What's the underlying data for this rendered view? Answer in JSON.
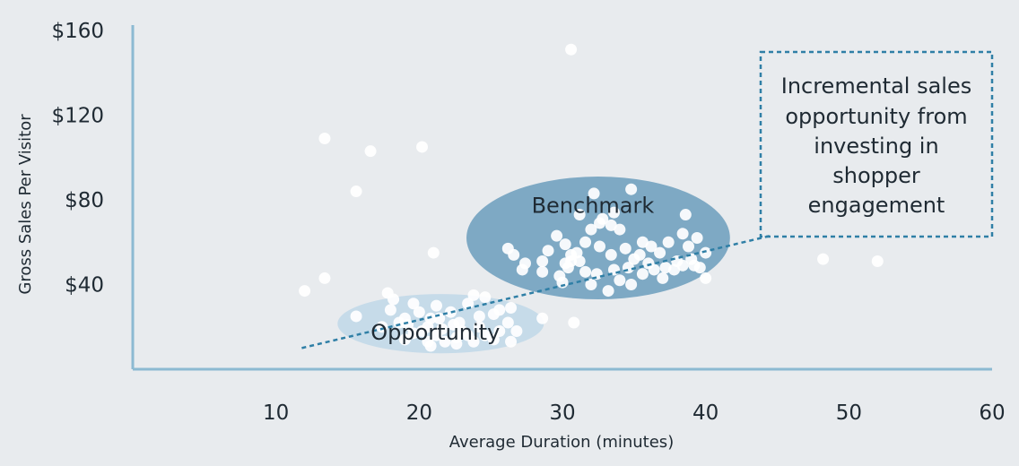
{
  "chart_data": {
    "type": "scatter",
    "xlabel": "Average Duration (minutes)",
    "ylabel": "Gross Sales Per Visitor",
    "x_ticks": [
      "10",
      "20",
      "30",
      "40",
      "50",
      "60"
    ],
    "y_ticks": [
      "$40",
      "$80",
      "$120",
      "$160"
    ],
    "xlim": [
      0,
      60
    ],
    "ylim": [
      0,
      160
    ],
    "grid": false,
    "colors": {
      "background": "#e8ebee",
      "axis": "#8cbad2",
      "point": "#ffffff",
      "benchmark_fill": "#7ea9c4",
      "opportunity_fill": "#c6dbe9",
      "trend": "#2f7fa6"
    },
    "regions": [
      {
        "label": "Benchmark",
        "center": [
          32.5,
          62
        ],
        "radius_x": 9.2,
        "radius_y": 29
      },
      {
        "label": "Opportunity",
        "center": [
          21.5,
          21.5
        ],
        "radius_x": 7.2,
        "radius_y": 14
      }
    ],
    "trendline": {
      "from": [
        11.8,
        10
      ],
      "to": [
        44.5,
        63
      ]
    },
    "callout": {
      "lines": [
        "Incremental sales",
        "opportunity from",
        "investing in",
        "shopper",
        "engagement"
      ]
    },
    "points": [
      [
        30.6,
        151
      ],
      [
        13.4,
        109
      ],
      [
        16.6,
        103
      ],
      [
        20.2,
        105
      ],
      [
        15.6,
        84
      ],
      [
        21.0,
        55
      ],
      [
        12.0,
        37
      ],
      [
        13.4,
        43
      ],
      [
        48.2,
        52
      ],
      [
        52.0,
        51
      ],
      [
        30.8,
        22
      ],
      [
        40.0,
        43
      ],
      [
        32.2,
        83
      ],
      [
        34.8,
        85
      ],
      [
        31.2,
        73
      ],
      [
        32.8,
        71
      ],
      [
        33.6,
        74
      ],
      [
        38.6,
        73
      ],
      [
        32.0,
        66
      ],
      [
        32.6,
        69
      ],
      [
        33.4,
        68
      ],
      [
        34.0,
        66
      ],
      [
        35.6,
        60
      ],
      [
        36.2,
        58
      ],
      [
        37.4,
        60
      ],
      [
        38.4,
        64
      ],
      [
        39.4,
        62
      ],
      [
        38.8,
        58
      ],
      [
        40.0,
        55
      ],
      [
        39.0,
        52
      ],
      [
        36.8,
        55
      ],
      [
        35.0,
        52
      ],
      [
        34.4,
        57
      ],
      [
        33.4,
        54
      ],
      [
        32.6,
        58
      ],
      [
        31.6,
        60
      ],
      [
        30.2,
        59
      ],
      [
        29.6,
        63
      ],
      [
        29.0,
        56
      ],
      [
        30.6,
        54
      ],
      [
        31.2,
        51
      ],
      [
        28.6,
        51
      ],
      [
        27.4,
        50
      ],
      [
        26.6,
        54
      ],
      [
        26.2,
        57
      ],
      [
        27.2,
        47
      ],
      [
        28.6,
        46
      ],
      [
        29.8,
        44
      ],
      [
        30.4,
        48
      ],
      [
        31.6,
        46
      ],
      [
        30.0,
        41
      ],
      [
        32.0,
        40
      ],
      [
        33.2,
        37
      ],
      [
        34.0,
        42
      ],
      [
        34.8,
        40
      ],
      [
        35.6,
        45
      ],
      [
        36.4,
        47
      ],
      [
        37.0,
        43
      ],
      [
        37.8,
        47
      ],
      [
        38.4,
        49
      ],
      [
        39.6,
        48
      ],
      [
        36.0,
        50
      ],
      [
        37.2,
        48
      ],
      [
        38.0,
        51
      ],
      [
        39.2,
        49
      ],
      [
        33.6,
        47
      ],
      [
        32.4,
        45
      ],
      [
        34.6,
        48
      ],
      [
        35.4,
        54
      ],
      [
        31.0,
        55
      ],
      [
        30.6,
        51
      ],
      [
        30.2,
        50
      ],
      [
        17.8,
        36
      ],
      [
        18.2,
        33
      ],
      [
        18.0,
        28
      ],
      [
        15.6,
        25
      ],
      [
        19.0,
        24
      ],
      [
        19.6,
        31
      ],
      [
        20.0,
        27
      ],
      [
        20.8,
        24
      ],
      [
        21.2,
        30
      ],
      [
        22.2,
        27
      ],
      [
        22.8,
        22
      ],
      [
        23.4,
        31
      ],
      [
        23.8,
        35
      ],
      [
        24.6,
        34
      ],
      [
        24.2,
        25
      ],
      [
        25.2,
        26
      ],
      [
        25.6,
        28
      ],
      [
        26.4,
        29
      ],
      [
        26.2,
        22
      ],
      [
        26.8,
        18
      ],
      [
        25.6,
        18
      ],
      [
        24.6,
        16
      ],
      [
        24.2,
        20
      ],
      [
        23.4,
        16
      ],
      [
        22.6,
        15
      ],
      [
        21.8,
        13
      ],
      [
        21.2,
        16
      ],
      [
        20.6,
        13
      ],
      [
        20.2,
        18
      ],
      [
        19.6,
        17
      ],
      [
        19.2,
        21
      ],
      [
        20.6,
        20
      ],
      [
        21.6,
        19
      ],
      [
        22.4,
        21
      ],
      [
        23.0,
        18
      ],
      [
        21.4,
        24
      ],
      [
        22.6,
        12
      ],
      [
        20.8,
        11
      ],
      [
        23.8,
        13
      ],
      [
        25.2,
        14
      ],
      [
        26.4,
        13
      ],
      [
        28.6,
        24
      ],
      [
        18.6,
        22
      ],
      [
        17.4,
        20
      ],
      [
        19.0,
        14
      ]
    ]
  }
}
